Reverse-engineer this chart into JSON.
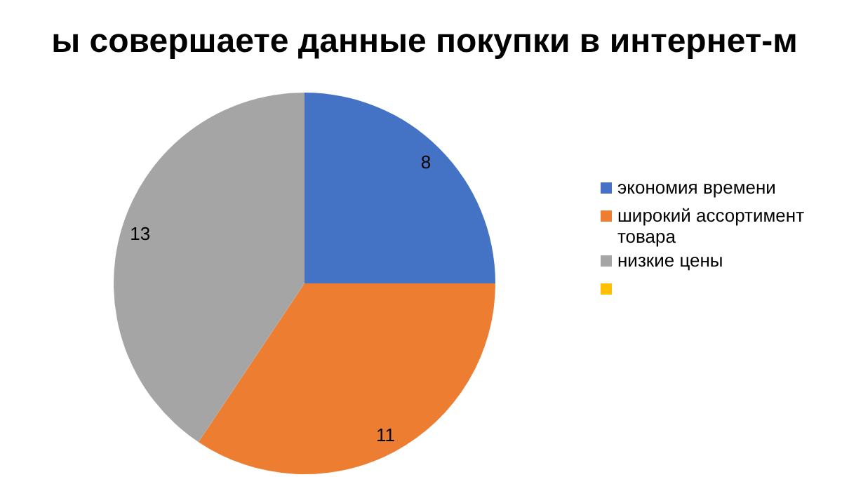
{
  "chart_data": {
    "type": "pie",
    "title": "ы совершаете данные покупки в интернет-м",
    "categories": [
      "экономия времени",
      "широкий ассортимент товара",
      "низкие цены",
      null
    ],
    "values": [
      8,
      11,
      13,
      0
    ],
    "colors": [
      "#4472c4",
      "#ed7d31",
      "#a5a5a5",
      "#ffc000"
    ],
    "data_labels": true,
    "legend": "right"
  }
}
